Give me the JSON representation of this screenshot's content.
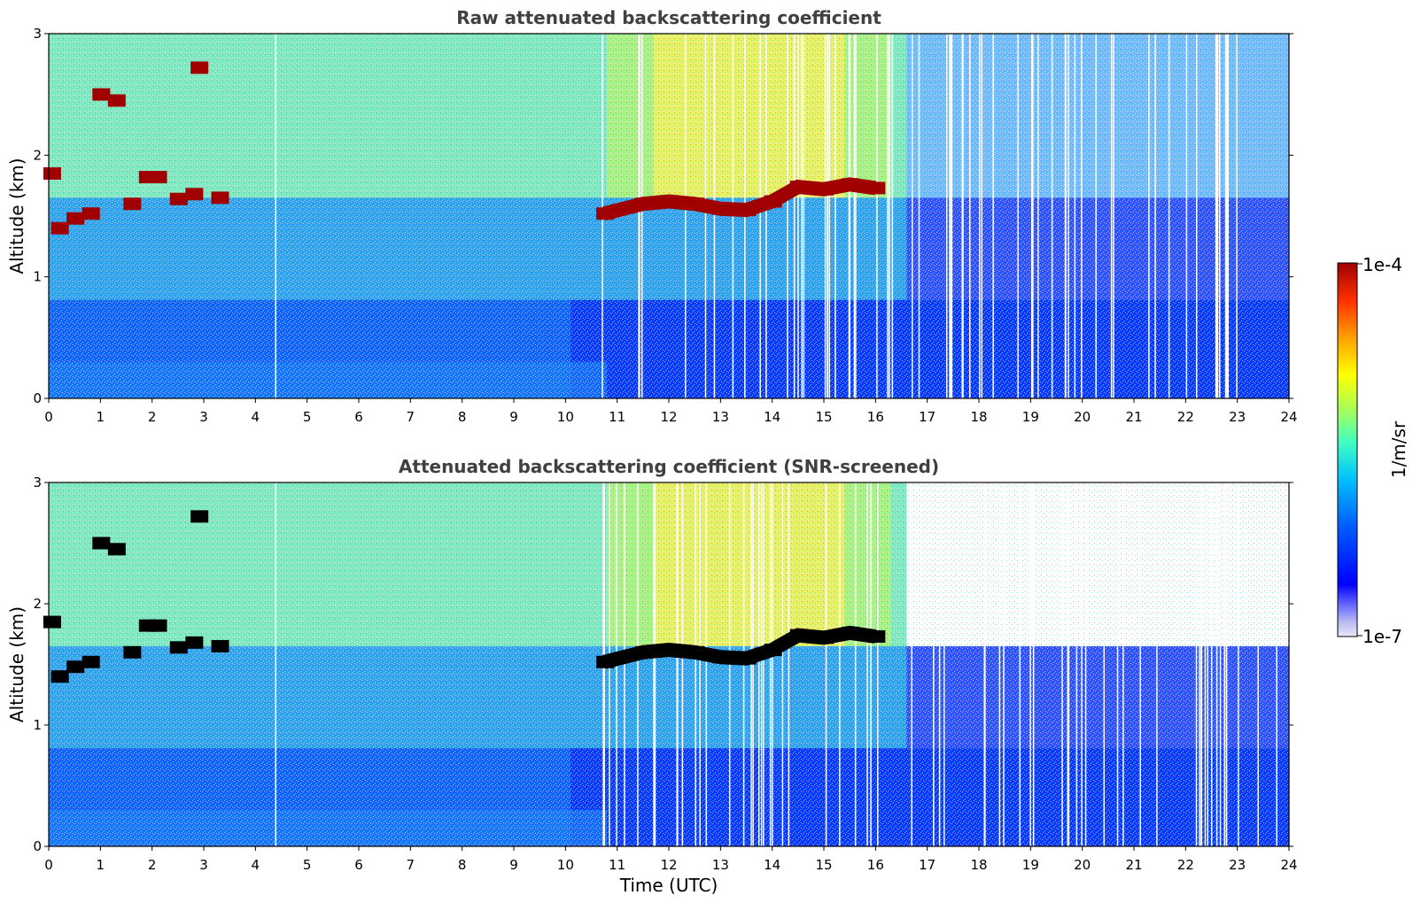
{
  "chart_data": [
    {
      "type": "heatmap",
      "title": "Raw attenuated backscattering coefficient",
      "ylabel": "Altitude (km)",
      "xlabel": "",
      "xlim": [
        0,
        24
      ],
      "ylim": [
        0,
        3
      ],
      "xticks": [
        "0",
        "1",
        "2",
        "3",
        "4",
        "5",
        "6",
        "7",
        "8",
        "9",
        "10",
        "11",
        "12",
        "13",
        "14",
        "15",
        "16",
        "17",
        "18",
        "19",
        "20",
        "21",
        "22",
        "23",
        "24"
      ],
      "yticks": [
        "0",
        "1",
        "2",
        "3"
      ],
      "layers": [
        {
          "name": "cloud",
          "points": [
            [
              0.05,
              1.85
            ],
            [
              0.2,
              1.4
            ],
            [
              0.5,
              1.48
            ],
            [
              0.8,
              1.52
            ],
            [
              1.0,
              2.5
            ],
            [
              1.3,
              2.45
            ],
            [
              1.6,
              1.6
            ],
            [
              1.9,
              1.82
            ],
            [
              2.1,
              1.82
            ],
            [
              2.5,
              1.64
            ],
            [
              2.8,
              1.68
            ],
            [
              2.9,
              2.72
            ],
            [
              3.3,
              1.65
            ]
          ]
        },
        {
          "name": "cloud-band",
          "points": [
            [
              10.75,
              1.52
            ],
            [
              11.5,
              1.6
            ],
            [
              12.0,
              1.62
            ],
            [
              12.5,
              1.6
            ],
            [
              13.0,
              1.56
            ],
            [
              13.5,
              1.55
            ],
            [
              14.0,
              1.62
            ],
            [
              14.5,
              1.74
            ],
            [
              15.0,
              1.72
            ],
            [
              15.5,
              1.76
            ],
            [
              16.0,
              1.73
            ]
          ]
        }
      ],
      "colorscale": "jet"
    },
    {
      "type": "heatmap",
      "title": "Attenuated backscattering coefficient (SNR-screened)",
      "ylabel": "Altitude (km)",
      "xlabel": "Time (UTC)",
      "xlim": [
        0,
        24
      ],
      "ylim": [
        0,
        3
      ],
      "xticks": [
        "0",
        "1",
        "2",
        "3",
        "4",
        "5",
        "6",
        "7",
        "8",
        "9",
        "10",
        "11",
        "12",
        "13",
        "14",
        "15",
        "16",
        "17",
        "18",
        "19",
        "20",
        "21",
        "22",
        "23",
        "24"
      ],
      "yticks": [
        "0",
        "1",
        "2",
        "3"
      ],
      "layers": [
        {
          "name": "cloud",
          "points": [
            [
              0.05,
              1.85
            ],
            [
              0.2,
              1.4
            ],
            [
              0.5,
              1.48
            ],
            [
              0.8,
              1.52
            ],
            [
              1.0,
              2.5
            ],
            [
              1.3,
              2.45
            ],
            [
              1.6,
              1.6
            ],
            [
              1.9,
              1.82
            ],
            [
              2.1,
              1.82
            ],
            [
              2.5,
              1.64
            ],
            [
              2.8,
              1.68
            ],
            [
              2.9,
              2.72
            ],
            [
              3.3,
              1.65
            ]
          ]
        },
        {
          "name": "cloud-band",
          "points": [
            [
              10.75,
              1.52
            ],
            [
              11.5,
              1.6
            ],
            [
              12.0,
              1.62
            ],
            [
              12.5,
              1.6
            ],
            [
              13.0,
              1.56
            ],
            [
              13.5,
              1.55
            ],
            [
              14.0,
              1.62
            ],
            [
              14.5,
              1.74
            ],
            [
              15.0,
              1.72
            ],
            [
              15.5,
              1.76
            ],
            [
              16.0,
              1.73
            ]
          ]
        }
      ],
      "colorscale": "jet"
    }
  ],
  "colorbar": {
    "label": "1/m/sr",
    "max_label": "1e-4",
    "min_label": "1e-7",
    "colors": [
      "#e8e8f8",
      "#b8b8f0",
      "#7070ff",
      "#0000ff",
      "#0060ff",
      "#00c0ff",
      "#40ffc0",
      "#a0ff60",
      "#ffff00",
      "#ffa000",
      "#ff3000",
      "#a00000"
    ]
  }
}
